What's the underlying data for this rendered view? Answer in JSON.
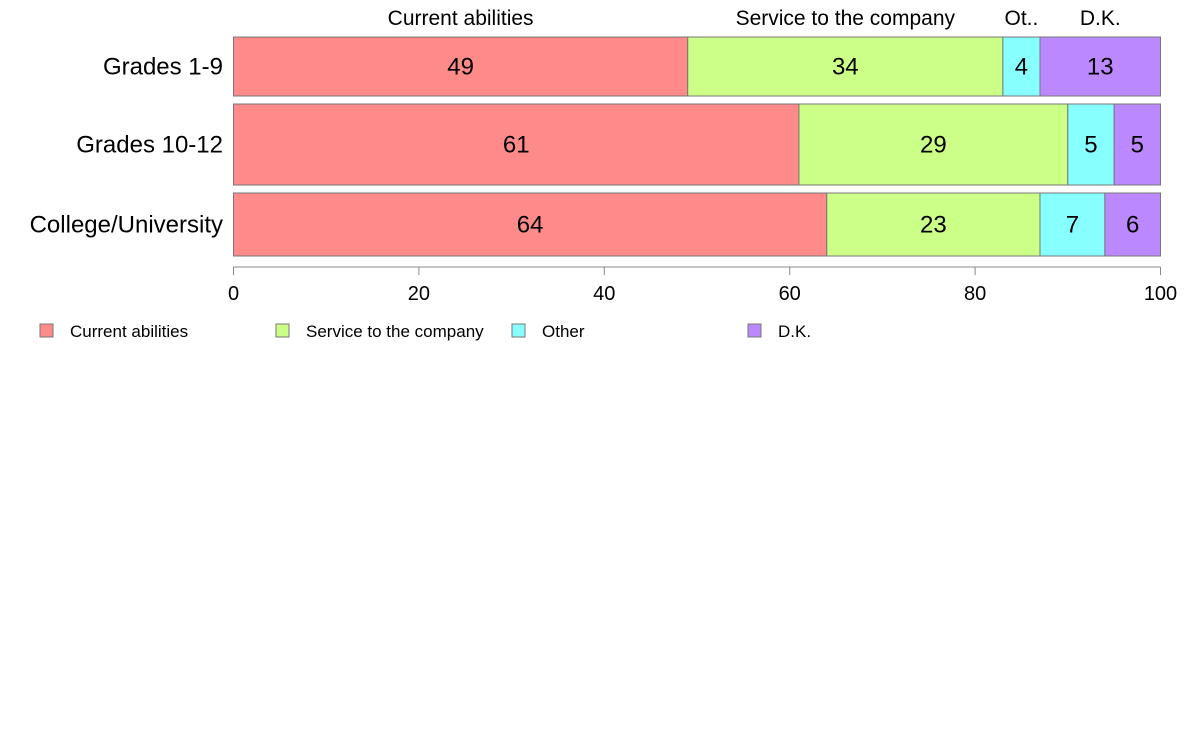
{
  "chart_data": {
    "type": "bar",
    "orientation": "horizontal",
    "stacked": true,
    "categories": [
      "Grades 1-9",
      "Grades 10-12",
      "College/University"
    ],
    "series": [
      {
        "name": "Current abilities",
        "color": "#ff8a8a",
        "values": [
          49,
          61,
          64
        ],
        "value_labels": [
          "49",
          "61",
          "64"
        ]
      },
      {
        "name": "Service to the company",
        "color": "#ccff88",
        "values": [
          34,
          29,
          23
        ],
        "value_labels": [
          "34",
          "29",
          "23"
        ]
      },
      {
        "name": "Other",
        "color": "#88ffff",
        "values": [
          4,
          5,
          7
        ],
        "value_labels": [
          "4",
          "5",
          "7"
        ]
      },
      {
        "name": "D.K.",
        "color": "#bb88ff",
        "values": [
          13,
          5,
          6
        ],
        "value_labels": [
          "13",
          "5",
          "6"
        ]
      }
    ],
    "top_labels": [
      "Current abilities",
      "Service to the company",
      "Ot..",
      "D.K."
    ],
    "xlim": [
      0,
      100
    ],
    "xticks": [
      "0",
      "20",
      "40",
      "60",
      "80",
      "100"
    ],
    "grid": false,
    "legend": {
      "position": "bottom-left",
      "entries": [
        "Current abilities",
        "Service to the company",
        "Other",
        "D.K."
      ]
    }
  }
}
